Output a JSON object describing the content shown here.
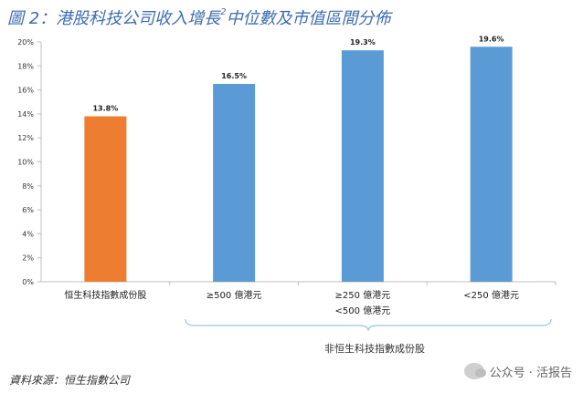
{
  "title": "圖 2：港股科技公司收入增長",
  "title_sup": "2",
  "title_suffix": "中位數及市值區間分佈",
  "bracket_label": "非恒生科技指數成份股",
  "source": "資料來源：恒生指數公司",
  "watermark": "公众号 · 活报告",
  "colors": {
    "orange": "#ED7D31",
    "blue": "#5B9BD5",
    "title": "#3c6cb4",
    "axis": "#bfbfbf"
  },
  "chart_data": {
    "type": "bar",
    "categories": [
      "恒生科技指數成份股",
      "≥500 億港元",
      "≥250 億港元\n<500 億港元",
      "<250 億港元"
    ],
    "values": [
      13.8,
      16.5,
      19.3,
      19.6
    ],
    "data_labels": [
      "13.8%",
      "16.5%",
      "19.3%",
      "19.6%"
    ],
    "bar_colors": [
      "#ED7D31",
      "#5B9BD5",
      "#5B9BD5",
      "#5B9BD5"
    ],
    "ylim": [
      0,
      20
    ],
    "yticks": [
      "0%",
      "2%",
      "4%",
      "6%",
      "8%",
      "10%",
      "12%",
      "14%",
      "16%",
      "18%",
      "20%"
    ],
    "grid": false,
    "legend": "none"
  }
}
